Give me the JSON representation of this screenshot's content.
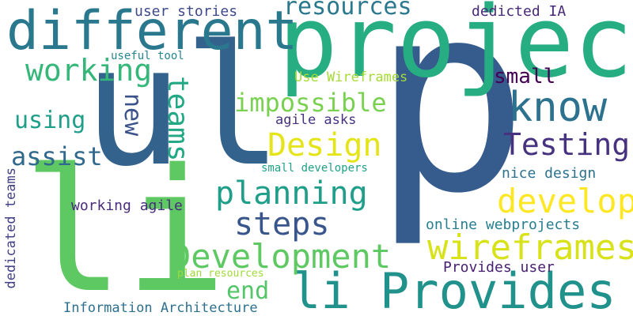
{
  "words": [
    {
      "text": "p",
      "color": "#365c8d"
    },
    {
      "text": "ul",
      "color": "#33638d"
    },
    {
      "text": "li",
      "color": "#5ec962"
    },
    {
      "text": "project",
      "color": "#26ad81"
    },
    {
      "text": "different",
      "color": "#2a788e"
    },
    {
      "text": "li Provides",
      "color": "#21918c"
    },
    {
      "text": "know",
      "color": "#2c728e"
    },
    {
      "text": "Testing",
      "color": "#46327e"
    },
    {
      "text": "develop",
      "color": "#fde725"
    },
    {
      "text": "wireframes",
      "color": "#d8e219"
    },
    {
      "text": "Development",
      "color": "#5ec962"
    },
    {
      "text": "planning",
      "color": "#1f9e89"
    },
    {
      "text": "steps",
      "color": "#39568c"
    },
    {
      "text": "Design",
      "color": "#e5e419"
    },
    {
      "text": "impossible",
      "color": "#7ad151"
    },
    {
      "text": "working",
      "color": "#35b779"
    },
    {
      "text": "teams",
      "color": "#22a884"
    },
    {
      "text": "resources",
      "color": "#2a788e"
    },
    {
      "text": "using",
      "color": "#1f9e89"
    },
    {
      "text": "assist",
      "color": "#31688e"
    },
    {
      "text": "new",
      "color": "#3b528b"
    },
    {
      "text": "small",
      "color": "#440154"
    },
    {
      "text": "end",
      "color": "#54c568"
    },
    {
      "text": "user stories",
      "color": "#3e4989"
    },
    {
      "text": "dedicted IA",
      "color": "#482878"
    },
    {
      "text": "useful tool",
      "color": "#25858e"
    },
    {
      "text": "Use Wireframes",
      "color": "#a5db36"
    },
    {
      "text": "agile asks",
      "color": "#46327e"
    },
    {
      "text": "small developers",
      "color": "#1fa187"
    },
    {
      "text": "nice design",
      "color": "#2c728e"
    },
    {
      "text": "working agile",
      "color": "#472d7b"
    },
    {
      "text": "online webprojects",
      "color": "#277f8e"
    },
    {
      "text": "Provides user",
      "color": "#482173"
    },
    {
      "text": "plan resources",
      "color": "#a0da39"
    },
    {
      "text": "Information Architecture",
      "color": "#2d708e"
    },
    {
      "text": "dedicated teams",
      "color": "#424086"
    }
  ]
}
